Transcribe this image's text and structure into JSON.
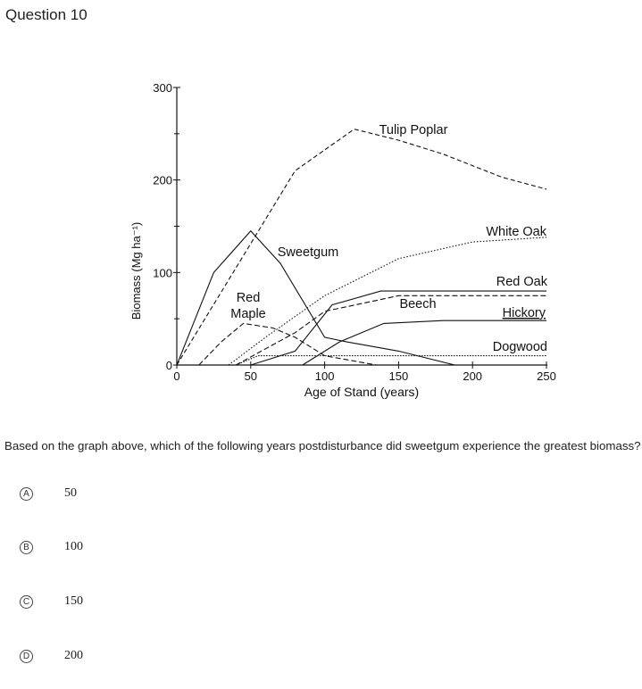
{
  "question": {
    "title": "Question 10",
    "prompt": "Based on the graph above, which of the following years postdisturbance did sweetgum experience the greatest biomass?",
    "choices": [
      {
        "letter": "A",
        "text": "50"
      },
      {
        "letter": "B",
        "text": "100"
      },
      {
        "letter": "C",
        "text": "150"
      },
      {
        "letter": "D",
        "text": "200"
      }
    ]
  },
  "chart_data": {
    "type": "line",
    "title": "",
    "xlabel": "Age of Stand (years)",
    "ylabel": "Biomass (Mg ha⁻¹)",
    "xlim": [
      0,
      250
    ],
    "ylim": [
      0,
      300
    ],
    "xticks": [
      "0",
      "50",
      "100",
      "150",
      "200",
      "250"
    ],
    "yticks": [
      "0",
      "100",
      "200",
      "300"
    ],
    "grid": false,
    "legend": "none",
    "series": [
      {
        "name": "Tulip Poplar",
        "dash": "5,3",
        "x": [
          0,
          80,
          120,
          150,
          180,
          220,
          250
        ],
        "y": [
          0,
          210,
          255,
          243,
          228,
          203,
          190
        ]
      },
      {
        "name": "White Oak",
        "dash": "1.5,2",
        "x": [
          35,
          60,
          100,
          150,
          200,
          250
        ],
        "y": [
          0,
          30,
          75,
          115,
          133,
          138
        ]
      },
      {
        "name": "Red Oak",
        "dash": "",
        "x": [
          50,
          80,
          105,
          138,
          250
        ],
        "y": [
          0,
          15,
          65,
          80,
          80
        ]
      },
      {
        "name": "Beech",
        "dash": "6,3",
        "x": [
          40,
          80,
          100,
          150,
          250
        ],
        "y": [
          0,
          35,
          58,
          75,
          75
        ]
      },
      {
        "name": "Hickory",
        "dash": "",
        "x": [
          85,
          110,
          140,
          180,
          250
        ],
        "y": [
          0,
          25,
          45,
          48,
          48
        ]
      },
      {
        "name": "Dogwood",
        "dash": "1.5,1.5",
        "x": [
          40,
          55,
          250
        ],
        "y": [
          0,
          10,
          10
        ]
      },
      {
        "name": "Sweetgum",
        "dash": "",
        "x": [
          0,
          25,
          50,
          70,
          100,
          115,
          150,
          188
        ],
        "y": [
          0,
          100,
          145,
          110,
          30,
          25,
          15,
          0
        ]
      },
      {
        "name": "Red Maple",
        "dash": "6,3",
        "x": [
          15,
          30,
          45,
          65,
          80,
          100,
          135
        ],
        "y": [
          0,
          25,
          45,
          40,
          30,
          10,
          0
        ]
      }
    ],
    "labels": [
      {
        "series": "Tulip Poplar",
        "text": "Tulip Poplar"
      },
      {
        "series": "White Oak",
        "text": "White Oak"
      },
      {
        "series": "Red Oak",
        "text": "Red Oak"
      },
      {
        "series": "Beech",
        "text": "Beech"
      },
      {
        "series": "Hickory",
        "text": "Hickory"
      },
      {
        "series": "Dogwood",
        "text": "Dogwood"
      },
      {
        "series": "Sweetgum",
        "text": "Sweetgum"
      },
      {
        "series": "Red Maple",
        "text": "Red\nMaple"
      }
    ]
  }
}
